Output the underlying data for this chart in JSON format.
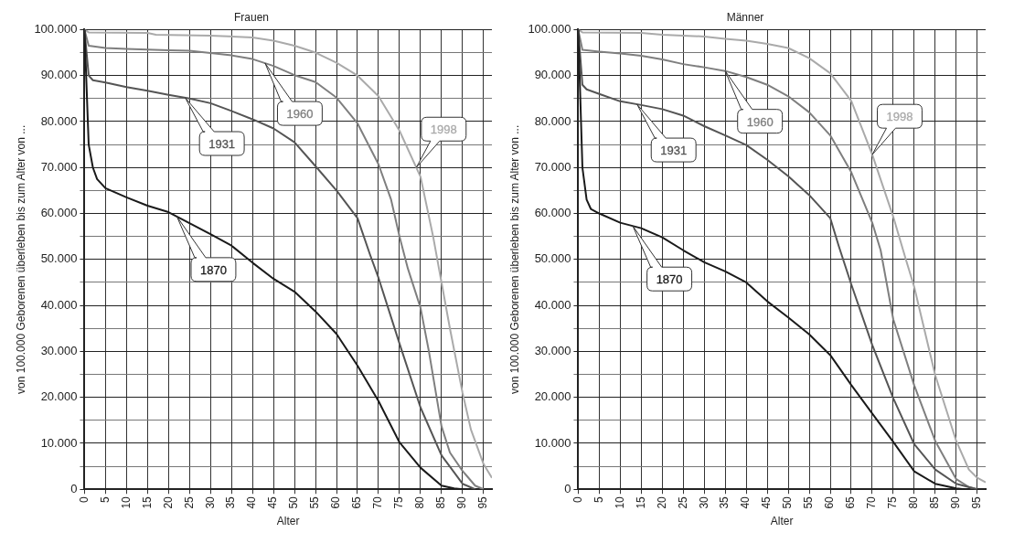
{
  "chart_data": [
    {
      "type": "line",
      "title": "Frauen",
      "xlabel": "Alter",
      "ylabel": "von 100.000 Geborenen überleben bis zum Alter von ...",
      "xlim": [
        0,
        97
      ],
      "ylim": [
        0,
        100000
      ],
      "grid": true,
      "marker": "none",
      "line_style": "solid",
      "xticks": [
        0,
        5,
        10,
        15,
        20,
        25,
        30,
        35,
        40,
        45,
        50,
        55,
        60,
        65,
        70,
        75,
        80,
        85,
        90,
        95
      ],
      "yticks": [
        {
          "value": 0,
          "label": "0"
        },
        {
          "value": 5000,
          "label": null
        },
        {
          "value": 10000,
          "label": "10.000"
        },
        {
          "value": 15000,
          "label": null
        },
        {
          "value": 20000,
          "label": "20.000"
        },
        {
          "value": 25000,
          "label": null
        },
        {
          "value": 30000,
          "label": "30.000"
        },
        {
          "value": 35000,
          "label": null
        },
        {
          "value": 40000,
          "label": "40.000"
        },
        {
          "value": 45000,
          "label": null
        },
        {
          "value": 50000,
          "label": "50.000"
        },
        {
          "value": 55000,
          "label": null
        },
        {
          "value": 60000,
          "label": "60.000"
        },
        {
          "value": 65000,
          "label": null
        },
        {
          "value": 70000,
          "label": "70.000"
        },
        {
          "value": 75000,
          "label": null
        },
        {
          "value": 80000,
          "label": "80.000"
        },
        {
          "value": 85000,
          "label": null
        },
        {
          "value": 90000,
          "label": "90.000"
        },
        {
          "value": 95000,
          "label": null
        },
        {
          "value": 100000,
          "label": "100.000"
        }
      ],
      "series": [
        {
          "name": "1870",
          "color": "#1a1a1a",
          "x": [
            0,
            1,
            2,
            3,
            5,
            10,
            15,
            20,
            25,
            30,
            35,
            40,
            45,
            50,
            55,
            60,
            65,
            70,
            75,
            80,
            85,
            88,
            90
          ],
          "values": [
            100000,
            75000,
            70000,
            67500,
            65500,
            63500,
            61700,
            60300,
            57900,
            55500,
            53000,
            49300,
            45800,
            43000,
            38700,
            33800,
            26900,
            19200,
            10200,
            4700,
            800,
            200,
            0
          ]
        },
        {
          "name": "1931",
          "color": "#555555",
          "x": [
            0,
            1,
            2,
            5,
            10,
            15,
            20,
            25,
            30,
            35,
            40,
            45,
            50,
            55,
            60,
            65,
            68,
            70,
            75,
            80,
            85,
            90,
            93
          ],
          "values": [
            100000,
            90000,
            89000,
            88500,
            87500,
            86700,
            85800,
            85000,
            84000,
            82300,
            80500,
            78500,
            75500,
            70300,
            65000,
            59000,
            51000,
            46000,
            31700,
            17800,
            7400,
            1200,
            0
          ]
        },
        {
          "name": "1960",
          "color": "#7f7f7f",
          "x": [
            0,
            1,
            5,
            10,
            20,
            25,
            30,
            35,
            40,
            45,
            50,
            55,
            60,
            65,
            70,
            73,
            75,
            77,
            80,
            82,
            85,
            87,
            90,
            93,
            95
          ],
          "values": [
            100000,
            96500,
            96000,
            95800,
            95500,
            95400,
            94900,
            94400,
            93600,
            92100,
            90100,
            88600,
            85200,
            79600,
            70700,
            63000,
            55000,
            48000,
            39500,
            30000,
            13700,
            8000,
            4000,
            800,
            0
          ]
        },
        {
          "name": "1998",
          "color": "#aaaaaa",
          "x": [
            0,
            1,
            15,
            17,
            30,
            40,
            45,
            50,
            55,
            60,
            65,
            70,
            75,
            80,
            83,
            85,
            87,
            90,
            92,
            95,
            97
          ],
          "values": [
            100000,
            99400,
            99300,
            98900,
            98700,
            98300,
            97600,
            96500,
            95000,
            92800,
            90000,
            85500,
            78000,
            68000,
            55000,
            45000,
            35000,
            21000,
            13000,
            5500,
            2500
          ]
        }
      ]
    },
    {
      "type": "line",
      "title": "Männer",
      "xlabel": "Alter",
      "ylabel": "von 100.000 Geborenen überleben bis zum Alter von ...",
      "xlim": [
        0,
        97
      ],
      "ylim": [
        0,
        100000
      ],
      "grid": true,
      "marker": "none",
      "line_style": "solid",
      "xticks": [
        0,
        5,
        10,
        15,
        20,
        25,
        30,
        35,
        40,
        45,
        50,
        55,
        60,
        65,
        70,
        75,
        80,
        85,
        90,
        95
      ],
      "yticks": [
        {
          "value": 0,
          "label": "0"
        },
        {
          "value": 5000,
          "label": null
        },
        {
          "value": 10000,
          "label": "10.000"
        },
        {
          "value": 15000,
          "label": null
        },
        {
          "value": 20000,
          "label": "20.000"
        },
        {
          "value": 25000,
          "label": null
        },
        {
          "value": 30000,
          "label": "30.000"
        },
        {
          "value": 35000,
          "label": null
        },
        {
          "value": 40000,
          "label": "40.000"
        },
        {
          "value": 45000,
          "label": null
        },
        {
          "value": 50000,
          "label": "50.000"
        },
        {
          "value": 55000,
          "label": null
        },
        {
          "value": 60000,
          "label": "60.000"
        },
        {
          "value": 65000,
          "label": null
        },
        {
          "value": 70000,
          "label": "70.000"
        },
        {
          "value": 75000,
          "label": null
        },
        {
          "value": 80000,
          "label": "80.000"
        },
        {
          "value": 85000,
          "label": null
        },
        {
          "value": 90000,
          "label": "90.000"
        },
        {
          "value": 95000,
          "label": null
        },
        {
          "value": 100000,
          "label": "100.000"
        }
      ],
      "series": [
        {
          "name": "1870",
          "color": "#1a1a1a",
          "x": [
            0,
            1,
            2,
            3,
            5,
            10,
            15,
            20,
            25,
            30,
            35,
            40,
            45,
            50,
            55,
            60,
            65,
            70,
            75,
            80,
            85,
            90,
            92
          ],
          "values": [
            100000,
            70000,
            63000,
            61000,
            60000,
            58000,
            56800,
            54800,
            52000,
            49400,
            47400,
            45000,
            40900,
            37400,
            33700,
            29200,
            22700,
            16500,
            10300,
            3900,
            1200,
            200,
            0
          ]
        },
        {
          "name": "1931",
          "color": "#555555",
          "x": [
            0,
            1,
            2,
            5,
            10,
            15,
            20,
            25,
            30,
            35,
            40,
            45,
            50,
            55,
            60,
            62,
            65,
            70,
            75,
            80,
            85,
            90,
            95
          ],
          "values": [
            100000,
            88000,
            87000,
            86000,
            84400,
            83600,
            82700,
            81300,
            79000,
            77000,
            74900,
            71700,
            68100,
            64000,
            59000,
            53000,
            44600,
            31400,
            19800,
            9800,
            4300,
            1200,
            0
          ]
        },
        {
          "name": "1960",
          "color": "#7f7f7f",
          "x": [
            0,
            1,
            5,
            10,
            15,
            20,
            25,
            30,
            35,
            40,
            45,
            50,
            55,
            60,
            65,
            70,
            72,
            75,
            80,
            85,
            90,
            93,
            95
          ],
          "values": [
            100000,
            95600,
            95200,
            94800,
            94300,
            93500,
            92500,
            91800,
            91000,
            89700,
            88000,
            85500,
            82000,
            77000,
            69000,
            58000,
            52000,
            37000,
            22600,
            10500,
            2200,
            500,
            0
          ]
        },
        {
          "name": "1998",
          "color": "#aaaaaa",
          "x": [
            0,
            1,
            15,
            20,
            30,
            35,
            40,
            45,
            50,
            55,
            60,
            65,
            70,
            75,
            78,
            80,
            85,
            90,
            93,
            95,
            97
          ],
          "values": [
            100000,
            99400,
            99300,
            98900,
            98500,
            98000,
            97600,
            96900,
            96000,
            93800,
            90500,
            84500,
            72800,
            59300,
            50000,
            44000,
            24800,
            10500,
            4300,
            2500,
            1500
          ]
        }
      ]
    }
  ]
}
